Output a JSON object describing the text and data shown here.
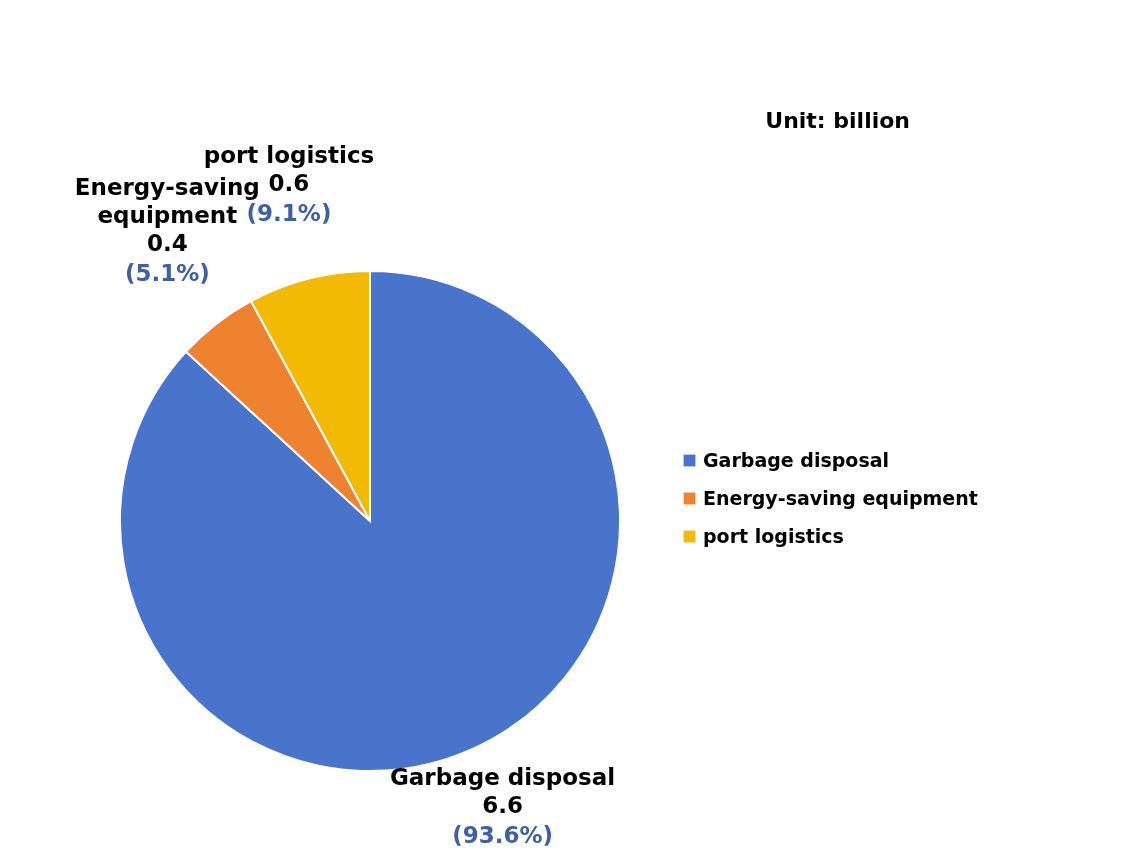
{
  "chart_data": {
    "type": "pie",
    "categories": [
      "Garbage disposal",
      "Energy-saving equipment",
      "port logistics"
    ],
    "values": [
      6.6,
      0.4,
      0.6
    ],
    "colors": [
      "#4874cb",
      "#ee822f",
      "#f2ba02"
    ],
    "value_labels": [
      "6.6\n(93.6%)",
      "0.4\n(5.1%)",
      "0.6\n(9.1%)"
    ],
    "annotations": [
      "Unit: billion"
    ],
    "legend": "right"
  }
}
